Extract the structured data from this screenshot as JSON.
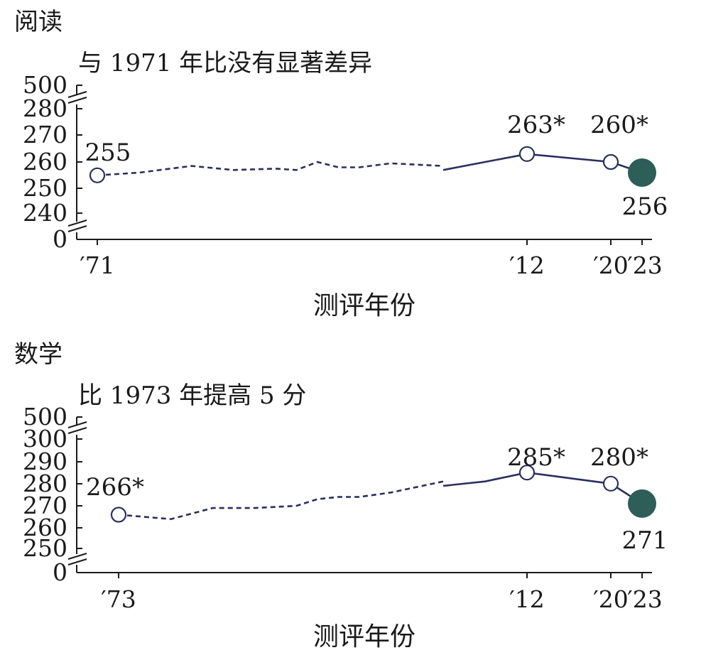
{
  "chart_data": [
    {
      "type": "line",
      "subject": "阅读",
      "title": "与 1971 年比没有显著差异",
      "xlabel": "测评年份",
      "y_ticks": [
        "500",
        "280",
        "270",
        "260",
        "250",
        "240",
        "0"
      ],
      "x_ticks": [
        {
          "year": 1971,
          "label": "′71"
        },
        {
          "year": 2012,
          "label": "′12"
        },
        {
          "year": 2020,
          "label": "′20"
        },
        {
          "year": 2023,
          "label": "′23"
        }
      ],
      "dashed_series": [
        {
          "year": 1971,
          "value": 255
        },
        {
          "year": 1975,
          "value": 256
        },
        {
          "year": 1980,
          "value": 258.5
        },
        {
          "year": 1984,
          "value": 257
        },
        {
          "year": 1988,
          "value": 257.5
        },
        {
          "year": 1990,
          "value": 257
        },
        {
          "year": 1992,
          "value": 260
        },
        {
          "year": 1994,
          "value": 258
        },
        {
          "year": 1996,
          "value": 258
        },
        {
          "year": 1999,
          "value": 259.5
        },
        {
          "year": 2004,
          "value": 258.5
        }
      ],
      "solid_series": [
        {
          "year": 2004,
          "value": 257
        },
        {
          "year": 2008,
          "value": 260
        },
        {
          "year": 2012,
          "value": 263
        },
        {
          "year": 2020,
          "value": 260
        },
        {
          "year": 2023,
          "value": 256
        }
      ],
      "points": [
        {
          "year": 1971,
          "value": 255,
          "label": "255",
          "style": "open"
        },
        {
          "year": 2012,
          "value": 263,
          "label": "263*",
          "style": "open"
        },
        {
          "year": 2020,
          "value": 260,
          "label": "260*",
          "style": "open"
        },
        {
          "year": 2023,
          "value": 256,
          "label": "256",
          "style": "filled"
        }
      ]
    },
    {
      "type": "line",
      "subject": "数学",
      "title": "比 1973 年提高 5 分",
      "xlabel": "测评年份",
      "y_ticks": [
        "500",
        "300",
        "290",
        "280",
        "270",
        "260",
        "250",
        "0"
      ],
      "x_ticks": [
        {
          "year": 1973,
          "label": "′73"
        },
        {
          "year": 2012,
          "label": "′12"
        },
        {
          "year": 2020,
          "label": "′20"
        },
        {
          "year": 2023,
          "label": "′23"
        }
      ],
      "dashed_series": [
        {
          "year": 1973,
          "value": 266
        },
        {
          "year": 1978,
          "value": 264
        },
        {
          "year": 1982,
          "value": 269
        },
        {
          "year": 1986,
          "value": 269
        },
        {
          "year": 1990,
          "value": 270
        },
        {
          "year": 1992,
          "value": 273
        },
        {
          "year": 1994,
          "value": 274
        },
        {
          "year": 1996,
          "value": 274
        },
        {
          "year": 1999,
          "value": 276
        },
        {
          "year": 2004,
          "value": 281
        }
      ],
      "solid_series": [
        {
          "year": 2004,
          "value": 279
        },
        {
          "year": 2008,
          "value": 281
        },
        {
          "year": 2012,
          "value": 285
        },
        {
          "year": 2020,
          "value": 280
        },
        {
          "year": 2023,
          "value": 271
        }
      ],
      "points": [
        {
          "year": 1973,
          "value": 266,
          "label": "266*",
          "style": "open"
        },
        {
          "year": 2012,
          "value": 285,
          "label": "285*",
          "style": "open"
        },
        {
          "year": 2020,
          "value": 280,
          "label": "280*",
          "style": "open"
        },
        {
          "year": 2023,
          "value": 271,
          "label": "271",
          "style": "filled"
        }
      ]
    }
  ],
  "colors": {
    "line": "#2b2f5e",
    "filled_point": "#2d5e57",
    "axis": "#1a1a1a"
  }
}
